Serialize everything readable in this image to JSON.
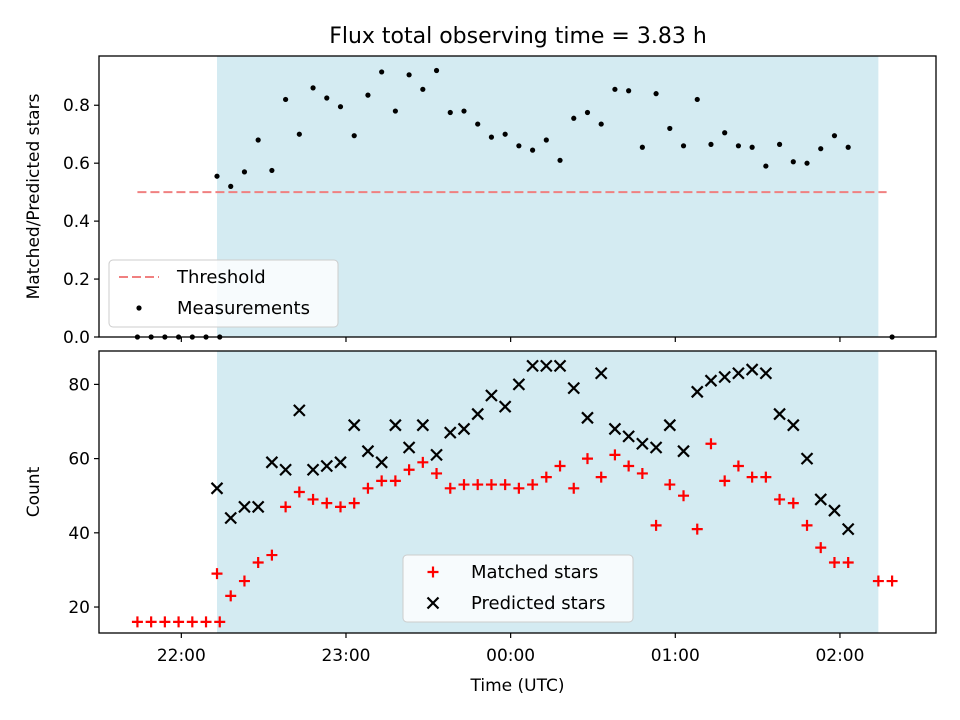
{
  "title": "Flux total observing time = 3.83 h",
  "shade_color": "#add8e6",
  "chart_data": [
    {
      "type": "scatter",
      "ylabel": "Matched/Predicted stars",
      "ylim": [
        0,
        0.97
      ],
      "yticks": [
        0.0,
        0.2,
        0.4,
        0.6,
        0.8
      ],
      "ytick_labels": [
        "0.0",
        "0.2",
        "0.4",
        "0.6",
        "0.8"
      ],
      "x_range": [
        "21:30",
        "02:35"
      ],
      "xticks": [
        "22:00",
        "23:00",
        "00:00",
        "01:00",
        "02:00"
      ],
      "shaded_span": [
        "22:13",
        "02:14"
      ],
      "threshold": {
        "name": "Threshold",
        "value": 0.5,
        "x_range": [
          "21:44",
          "02:17"
        ],
        "color": "#f08080"
      },
      "legend": {
        "position": "lower-left",
        "entries": [
          "Threshold",
          "Measurements"
        ]
      },
      "series": [
        {
          "name": "Measurements",
          "marker": "dot",
          "color": "#000000",
          "points": [
            [
              "21:44",
              0
            ],
            [
              "21:49",
              0
            ],
            [
              "21:54",
              0
            ],
            [
              "21:59",
              0
            ],
            [
              "22:04",
              0
            ],
            [
              "22:09",
              0
            ],
            [
              "22:14",
              0
            ],
            [
              "22:13",
              0.555
            ],
            [
              "22:18",
              0.52
            ],
            [
              "22:23",
              0.57
            ],
            [
              "22:28",
              0.68
            ],
            [
              "22:33",
              0.575
            ],
            [
              "22:38",
              0.82
            ],
            [
              "22:43",
              0.7
            ],
            [
              "22:48",
              0.86
            ],
            [
              "22:53",
              0.825
            ],
            [
              "22:58",
              0.795
            ],
            [
              "23:03",
              0.695
            ],
            [
              "23:08",
              0.835
            ],
            [
              "23:13",
              0.915
            ],
            [
              "23:18",
              0.78
            ],
            [
              "23:23",
              0.905
            ],
            [
              "23:28",
              0.855
            ],
            [
              "23:33",
              0.92
            ],
            [
              "23:38",
              0.775
            ],
            [
              "23:43",
              0.78
            ],
            [
              "23:48",
              0.735
            ],
            [
              "23:53",
              0.69
            ],
            [
              "23:58",
              0.7
            ],
            [
              "00:03",
              0.66
            ],
            [
              "00:08",
              0.645
            ],
            [
              "00:13",
              0.68
            ],
            [
              "00:18",
              0.61
            ],
            [
              "00:23",
              0.755
            ],
            [
              "00:28",
              0.775
            ],
            [
              "00:33",
              0.735
            ],
            [
              "00:38",
              0.855
            ],
            [
              "00:43",
              0.85
            ],
            [
              "00:48",
              0.655
            ],
            [
              "00:53",
              0.84
            ],
            [
              "00:58",
              0.72
            ],
            [
              "01:03",
              0.66
            ],
            [
              "01:08",
              0.82
            ],
            [
              "01:13",
              0.665
            ],
            [
              "01:18",
              0.705
            ],
            [
              "01:23",
              0.66
            ],
            [
              "01:28",
              0.655
            ],
            [
              "01:33",
              0.59
            ],
            [
              "01:38",
              0.665
            ],
            [
              "01:43",
              0.605
            ],
            [
              "01:48",
              0.6
            ],
            [
              "01:53",
              0.65
            ],
            [
              "01:58",
              0.695
            ],
            [
              "02:03",
              0.655
            ],
            [
              "02:19",
              0
            ]
          ]
        }
      ]
    },
    {
      "type": "scatter",
      "ylabel": "Count",
      "xlabel": "Time (UTC)",
      "ylim": [
        13,
        89
      ],
      "yticks": [
        20,
        40,
        60,
        80
      ],
      "ytick_labels": [
        "20",
        "40",
        "60",
        "80"
      ],
      "x_range": [
        "21:30",
        "02:35"
      ],
      "xticks": [
        "22:00",
        "23:00",
        "00:00",
        "01:00",
        "02:00"
      ],
      "xtick_labels": [
        "22:00",
        "23:00",
        "00:00",
        "01:00",
        "02:00"
      ],
      "shaded_span": [
        "22:13",
        "02:14"
      ],
      "legend": {
        "position": "lower-center",
        "entries": [
          "Matched stars",
          "Predicted stars"
        ]
      },
      "series": [
        {
          "name": "Matched stars",
          "marker": "plus",
          "color": "#ff0000",
          "points": [
            [
              "21:44",
              16
            ],
            [
              "21:49",
              16
            ],
            [
              "21:54",
              16
            ],
            [
              "21:59",
              16
            ],
            [
              "22:04",
              16
            ],
            [
              "22:09",
              16
            ],
            [
              "22:14",
              16
            ],
            [
              "22:13",
              29
            ],
            [
              "22:18",
              23
            ],
            [
              "22:23",
              27
            ],
            [
              "22:28",
              32
            ],
            [
              "22:33",
              34
            ],
            [
              "22:38",
              47
            ],
            [
              "22:43",
              51
            ],
            [
              "22:48",
              49
            ],
            [
              "22:53",
              48
            ],
            [
              "22:58",
              47
            ],
            [
              "23:03",
              48
            ],
            [
              "23:08",
              52
            ],
            [
              "23:13",
              54
            ],
            [
              "23:18",
              54
            ],
            [
              "23:23",
              57
            ],
            [
              "23:28",
              59
            ],
            [
              "23:33",
              56
            ],
            [
              "23:38",
              52
            ],
            [
              "23:43",
              53
            ],
            [
              "23:48",
              53
            ],
            [
              "23:53",
              53
            ],
            [
              "23:58",
              53
            ],
            [
              "00:03",
              52
            ],
            [
              "00:08",
              53
            ],
            [
              "00:13",
              55
            ],
            [
              "00:18",
              58
            ],
            [
              "00:23",
              52
            ],
            [
              "00:28",
              60
            ],
            [
              "00:33",
              55
            ],
            [
              "00:38",
              61
            ],
            [
              "00:43",
              58
            ],
            [
              "00:48",
              56
            ],
            [
              "00:53",
              42
            ],
            [
              "00:58",
              53
            ],
            [
              "01:03",
              50
            ],
            [
              "01:08",
              41
            ],
            [
              "01:13",
              64
            ],
            [
              "01:18",
              54
            ],
            [
              "01:23",
              58
            ],
            [
              "01:28",
              55
            ],
            [
              "01:33",
              55
            ],
            [
              "01:38",
              49
            ],
            [
              "01:43",
              48
            ],
            [
              "01:48",
              42
            ],
            [
              "01:53",
              36
            ],
            [
              "01:58",
              32
            ],
            [
              "02:03",
              32
            ],
            [
              "02:14",
              27
            ],
            [
              "02:19",
              27
            ]
          ]
        },
        {
          "name": "Predicted stars",
          "marker": "x",
          "color": "#000000",
          "points": [
            [
              "22:13",
              52
            ],
            [
              "22:18",
              44
            ],
            [
              "22:23",
              47
            ],
            [
              "22:28",
              47
            ],
            [
              "22:33",
              59
            ],
            [
              "22:38",
              57
            ],
            [
              "22:43",
              73
            ],
            [
              "22:48",
              57
            ],
            [
              "22:53",
              58
            ],
            [
              "22:58",
              59
            ],
            [
              "23:03",
              69
            ],
            [
              "23:08",
              62
            ],
            [
              "23:13",
              59
            ],
            [
              "23:18",
              69
            ],
            [
              "23:23",
              63
            ],
            [
              "23:28",
              69
            ],
            [
              "23:33",
              61
            ],
            [
              "23:38",
              67
            ],
            [
              "23:43",
              68
            ],
            [
              "23:48",
              72
            ],
            [
              "23:53",
              77
            ],
            [
              "23:58",
              74
            ],
            [
              "00:03",
              80
            ],
            [
              "00:08",
              85
            ],
            [
              "00:13",
              85
            ],
            [
              "00:18",
              85
            ],
            [
              "00:23",
              79
            ],
            [
              "00:28",
              71
            ],
            [
              "00:33",
              83
            ],
            [
              "00:38",
              68
            ],
            [
              "00:43",
              66
            ],
            [
              "00:48",
              64
            ],
            [
              "00:53",
              63
            ],
            [
              "00:58",
              69
            ],
            [
              "01:03",
              62
            ],
            [
              "01:08",
              78
            ],
            [
              "01:13",
              81
            ],
            [
              "01:18",
              82
            ],
            [
              "01:23",
              83
            ],
            [
              "01:28",
              84
            ],
            [
              "01:33",
              83
            ],
            [
              "01:38",
              72
            ],
            [
              "01:43",
              69
            ],
            [
              "01:48",
              60
            ],
            [
              "01:53",
              49
            ],
            [
              "01:58",
              46
            ],
            [
              "02:03",
              41
            ]
          ]
        }
      ]
    }
  ]
}
